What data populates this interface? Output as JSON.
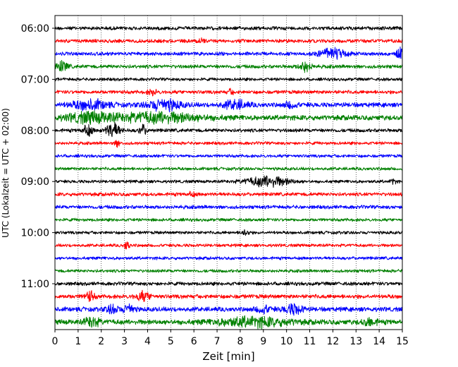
{
  "chart_data": {
    "type": "line",
    "chart_kind": "helicorder (seismogram drum plot)",
    "title": "",
    "xlabel": "Zeit  [min]",
    "ylabel": "UTC (Lokalzeit = UTC + 02:00)",
    "xlim": [
      0,
      15
    ],
    "x_ticks": [
      0,
      1,
      2,
      3,
      4,
      5,
      6,
      7,
      8,
      9,
      10,
      11,
      12,
      13,
      14,
      15
    ],
    "x_tick_labels": [
      "0",
      "1",
      "2",
      "3",
      "4",
      "5",
      "6",
      "7",
      "8",
      "9",
      "10",
      "11",
      "12",
      "13",
      "14",
      "15"
    ],
    "row_interval_min": 15,
    "y_tick_labels": [
      "06:00",
      "07:00",
      "08:00",
      "09:00",
      "10:00",
      "11:00"
    ],
    "grid": "vertical dotted lines at every minute",
    "trace_color_cycle": [
      "#000000",
      "#ff0000",
      "#0000ff",
      "#008000"
    ],
    "traces": [
      {
        "start": "06:00",
        "color": "#000000",
        "amplitude": 0.35,
        "bursts": []
      },
      {
        "start": "06:15",
        "color": "#ff0000",
        "amplitude": 0.35,
        "bursts": [
          {
            "t": 6.3,
            "dur": 0.3,
            "amp": 0.6
          }
        ]
      },
      {
        "start": "06:30",
        "color": "#0000ff",
        "amplitude": 0.35,
        "bursts": [
          {
            "t": 12.0,
            "dur": 1.2,
            "amp": 0.9
          },
          {
            "t": 14.9,
            "dur": 0.3,
            "amp": 1.0
          }
        ]
      },
      {
        "start": "06:45",
        "color": "#008000",
        "amplitude": 0.35,
        "bursts": [
          {
            "t": 0.3,
            "dur": 0.5,
            "amp": 1.0
          },
          {
            "t": 10.8,
            "dur": 0.5,
            "amp": 1.0
          }
        ]
      },
      {
        "start": "07:00",
        "color": "#000000",
        "amplitude": 0.3,
        "bursts": []
      },
      {
        "start": "07:15",
        "color": "#ff0000",
        "amplitude": 0.35,
        "bursts": [
          {
            "t": 4.2,
            "dur": 0.4,
            "amp": 0.5
          },
          {
            "t": 7.6,
            "dur": 0.2,
            "amp": 0.5
          }
        ]
      },
      {
        "start": "07:30",
        "color": "#0000ff",
        "amplitude": 0.45,
        "bursts": [
          {
            "t": 1.5,
            "dur": 1.5,
            "amp": 0.9
          },
          {
            "t": 4.7,
            "dur": 1.4,
            "amp": 1.0
          },
          {
            "t": 7.8,
            "dur": 1.0,
            "amp": 0.8
          },
          {
            "t": 10.2,
            "dur": 0.5,
            "amp": 0.6
          }
        ]
      },
      {
        "start": "07:45",
        "color": "#008000",
        "amplitude": 0.5,
        "bursts": [
          {
            "t": 1.5,
            "dur": 2.0,
            "amp": 0.9
          },
          {
            "t": 4.5,
            "dur": 3.5,
            "amp": 0.9
          }
        ]
      },
      {
        "start": "08:00",
        "color": "#000000",
        "amplitude": 0.35,
        "bursts": [
          {
            "t": 1.4,
            "dur": 0.4,
            "amp": 1.1
          },
          {
            "t": 2.5,
            "dur": 0.6,
            "amp": 1.4
          },
          {
            "t": 3.8,
            "dur": 0.3,
            "amp": 1.0
          }
        ]
      },
      {
        "start": "08:15",
        "color": "#ff0000",
        "amplitude": 0.3,
        "bursts": [
          {
            "t": 2.7,
            "dur": 0.2,
            "amp": 0.7
          }
        ]
      },
      {
        "start": "08:30",
        "color": "#0000ff",
        "amplitude": 0.3,
        "bursts": []
      },
      {
        "start": "08:45",
        "color": "#008000",
        "amplitude": 0.3,
        "bursts": []
      },
      {
        "start": "09:00",
        "color": "#000000",
        "amplitude": 0.3,
        "bursts": [
          {
            "t": 9.2,
            "dur": 1.8,
            "amp": 1.0
          },
          {
            "t": 14.6,
            "dur": 0.2,
            "amp": 0.6
          }
        ]
      },
      {
        "start": "09:15",
        "color": "#ff0000",
        "amplitude": 0.35,
        "bursts": [
          {
            "t": 5.9,
            "dur": 0.3,
            "amp": 0.4
          }
        ]
      },
      {
        "start": "09:30",
        "color": "#0000ff",
        "amplitude": 0.35,
        "bursts": []
      },
      {
        "start": "09:45",
        "color": "#008000",
        "amplitude": 0.3,
        "bursts": []
      },
      {
        "start": "10:00",
        "color": "#000000",
        "amplitude": 0.3,
        "bursts": [
          {
            "t": 8.2,
            "dur": 0.3,
            "amp": 0.6
          }
        ]
      },
      {
        "start": "10:15",
        "color": "#ff0000",
        "amplitude": 0.3,
        "bursts": [
          {
            "t": 3.1,
            "dur": 0.2,
            "amp": 1.0
          }
        ]
      },
      {
        "start": "10:30",
        "color": "#0000ff",
        "amplitude": 0.3,
        "bursts": []
      },
      {
        "start": "10:45",
        "color": "#008000",
        "amplitude": 0.3,
        "bursts": []
      },
      {
        "start": "11:00",
        "color": "#000000",
        "amplitude": 0.35,
        "bursts": []
      },
      {
        "start": "11:15",
        "color": "#ff0000",
        "amplitude": 0.4,
        "bursts": [
          {
            "t": 1.5,
            "dur": 0.4,
            "amp": 0.9
          },
          {
            "t": 3.8,
            "dur": 0.6,
            "amp": 0.8
          }
        ]
      },
      {
        "start": "11:30",
        "color": "#0000ff",
        "amplitude": 0.45,
        "bursts": [
          {
            "t": 2.5,
            "dur": 0.5,
            "amp": 0.8
          },
          {
            "t": 3.2,
            "dur": 0.4,
            "amp": 1.0
          },
          {
            "t": 9.0,
            "dur": 0.6,
            "amp": 0.7
          },
          {
            "t": 10.3,
            "dur": 0.8,
            "amp": 0.9
          }
        ]
      },
      {
        "start": "11:45",
        "color": "#008000",
        "amplitude": 0.5,
        "bursts": [
          {
            "t": 1.6,
            "dur": 0.6,
            "amp": 0.9
          },
          {
            "t": 8.6,
            "dur": 3.0,
            "amp": 0.8
          },
          {
            "t": 13.6,
            "dur": 0.6,
            "amp": 0.7
          }
        ]
      }
    ]
  }
}
